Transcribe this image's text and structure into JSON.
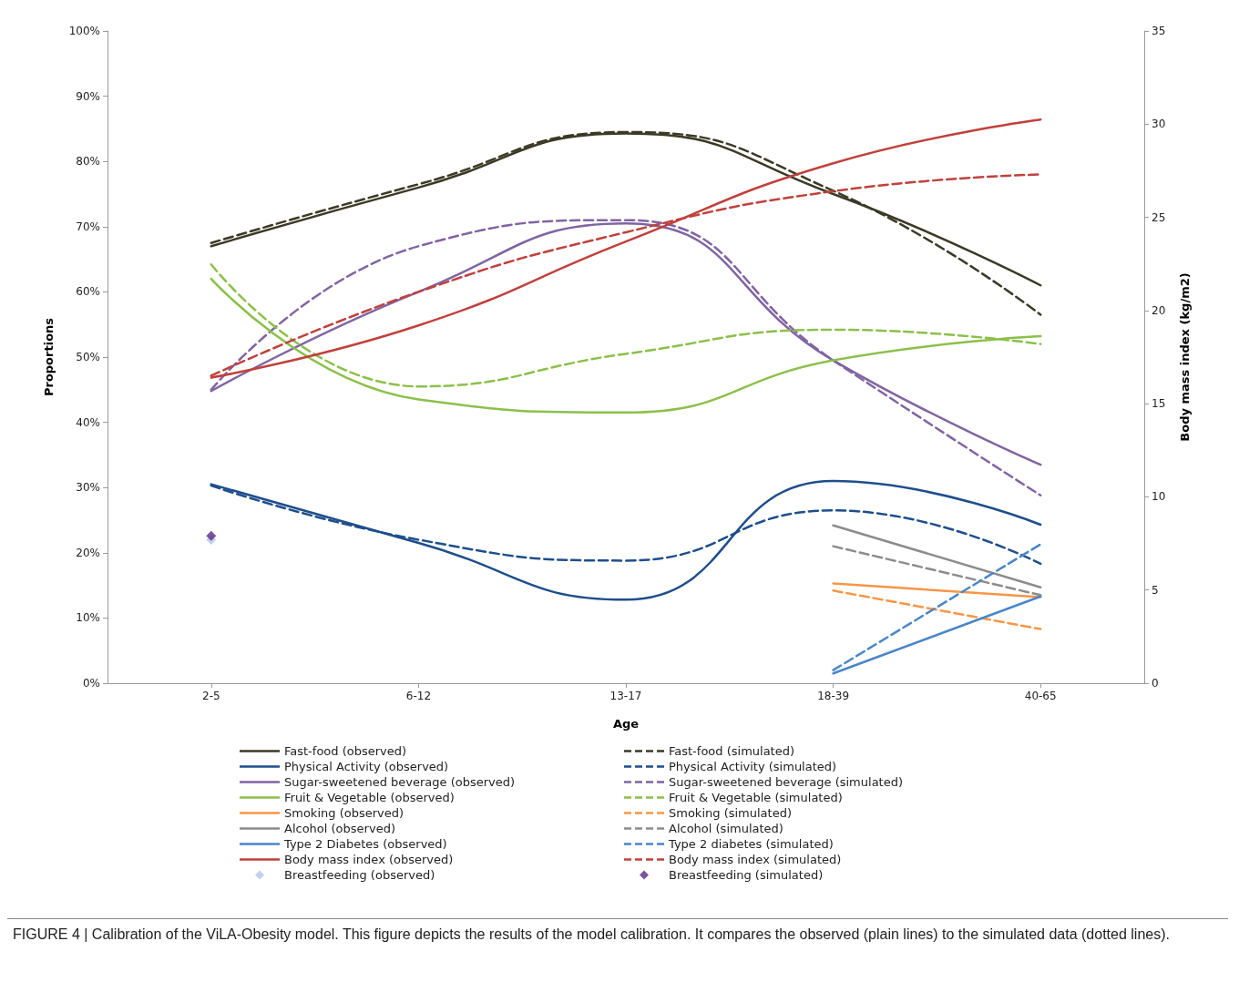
{
  "chart_data": {
    "type": "line",
    "xlabel": "Age",
    "ylabel": "Proportions",
    "y2label": "Body mass index (kg/m2)",
    "categories": [
      "2-5",
      "6-12",
      "13-17",
      "18-39",
      "40-65"
    ],
    "ylim": [
      0,
      100
    ],
    "yticks": [
      {
        "value": 0,
        "label": "0%"
      },
      {
        "value": 10,
        "label": "10%"
      },
      {
        "value": 20,
        "label": "20%"
      },
      {
        "value": 30,
        "label": "30%"
      },
      {
        "value": 40,
        "label": "40%"
      },
      {
        "value": 50,
        "label": "50%"
      },
      {
        "value": 60,
        "label": "60%"
      },
      {
        "value": 70,
        "label": "70%"
      },
      {
        "value": 80,
        "label": "80%"
      },
      {
        "value": 90,
        "label": "90%"
      },
      {
        "value": 100,
        "label": "100%"
      }
    ],
    "y2lim": [
      0,
      35
    ],
    "y2ticks": [
      0,
      5,
      10,
      15,
      20,
      25,
      30,
      35
    ],
    "grid": false,
    "legend": "bottom",
    "marker": "none",
    "series": [
      {
        "name": "Fast-food (observed)",
        "color": "#3b3a26",
        "line_style": "solid",
        "values": [
          67,
          76,
          84.3,
          75,
          61
        ]
      },
      {
        "name": "Fast-food (simulated)",
        "color": "#3b3a26",
        "line_style": "dashed",
        "values": [
          67.5,
          76.5,
          84.5,
          75.5,
          56.5
        ]
      },
      {
        "name": "Physical Activity (observed)",
        "color": "#1f4e8c",
        "line_style": "solid",
        "values": [
          30.5,
          21.5,
          12.8,
          31,
          24.3
        ]
      },
      {
        "name": "Physical Activity (simulated)",
        "color": "#1f4e8c",
        "line_style": "dashed",
        "values": [
          30.3,
          22,
          18.8,
          26.5,
          18.3
        ]
      },
      {
        "name": "Sugar-sweetened beverage (observed)",
        "color": "#8064a2",
        "line_style": "solid",
        "values": [
          44.8,
          60,
          70.5,
          49.5,
          33.5
        ]
      },
      {
        "name": "Sugar-sweetened beverage (simulated)",
        "color": "#8064a2",
        "line_style": "dashed",
        "values": [
          45,
          67,
          71,
          49.5,
          28.8
        ]
      },
      {
        "name": "Fruit & Vegetable (observed)",
        "color": "#8cbf4a",
        "line_style": "solid",
        "values": [
          62,
          43.5,
          41.5,
          49.5,
          53.2
        ]
      },
      {
        "name": "Fruit & Vegetable (simulated)",
        "color": "#8cbf4a",
        "line_style": "dashed",
        "values": [
          64.2,
          45.5,
          50.5,
          54.2,
          52
        ]
      },
      {
        "name": "Smoking (observed)",
        "color": "#f79646",
        "line_style": "solid",
        "values": [
          null,
          null,
          null,
          15.3,
          13.2
        ]
      },
      {
        "name": "Smoking (simulated)",
        "color": "#f79646",
        "line_style": "dashed",
        "values": [
          null,
          null,
          null,
          14.2,
          8.3
        ]
      },
      {
        "name": "Alcohol (observed)",
        "color": "#8c8c8c",
        "line_style": "solid",
        "values": [
          null,
          null,
          null,
          24.2,
          14.7
        ]
      },
      {
        "name": "Alcohol (simulated)",
        "color": "#8c8c8c",
        "line_style": "dashed",
        "values": [
          null,
          null,
          null,
          21,
          13.5
        ]
      },
      {
        "name": "Type 2 Diabetes (observed)",
        "color": "#4a86c8",
        "line_style": "solid",
        "values": [
          null,
          null,
          null,
          1.5,
          13.3
        ]
      },
      {
        "name": "Type 2 diabetes (simulated)",
        "color": "#4a86c8",
        "line_style": "dashed",
        "values": [
          null,
          null,
          null,
          2,
          21.3
        ]
      },
      {
        "name": "Body mass index (observed)",
        "color": "#c0413c",
        "line_style": "solid",
        "axis": "y2",
        "values": [
          16.4,
          19.2,
          23.7,
          27.9,
          30.25
        ]
      },
      {
        "name": "Body mass index (simulated)",
        "color": "#c0413c",
        "line_style": "dashed",
        "axis": "y2",
        "values": [
          16.5,
          21,
          24.2,
          26.4,
          27.3
        ]
      },
      {
        "name": "Breastfeeding (observed)",
        "type": "scatter",
        "marker": "diamond",
        "color": "#b4c7e7",
        "values": [
          22,
          null,
          null,
          null,
          null
        ]
      },
      {
        "name": "Breastfeeding (simulated)",
        "type": "scatter",
        "marker": "diamond",
        "color": "#5b2a86",
        "values": [
          22.6,
          null,
          null,
          null,
          null
        ]
      }
    ],
    "annotations": [
      "FIGURE 4 | Calibration of the ViLA-Obesity model. This figure depicts the results of the model calibration. It compares the observed (plain lines) to the simulated data (dotted lines)."
    ]
  }
}
